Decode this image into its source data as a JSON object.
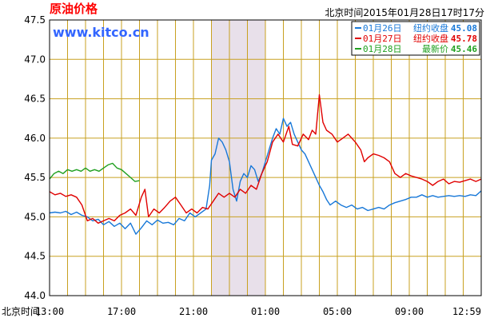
{
  "chart_data": {
    "type": "line",
    "title": "原油价格",
    "site": "www.kitco.cn",
    "timestamp": "北京时间2015年01月28日17时17分",
    "xlabel": "北京时间",
    "ylabel": "",
    "ylim": [
      44.0,
      47.5
    ],
    "yticks": [
      "44.0",
      "44.5",
      "45.0",
      "45.5",
      "46.0",
      "46.5",
      "47.0",
      "47.5"
    ],
    "xticks": [
      "13:00",
      "17:00",
      "21:00",
      "01:00",
      "05:00",
      "09:00",
      "12:59"
    ],
    "xrange": [
      0,
      24
    ],
    "shaded_region": [
      9.0,
      12.0
    ],
    "grid": true,
    "legend_placement": "top-right",
    "colors": {
      "grid": "#c8a020",
      "shade": "#e8e0ea",
      "frame": "#000000"
    },
    "series": [
      {
        "name": "01月26日",
        "label": "纽约收盘",
        "value": "45.08",
        "color": "#1878d8",
        "points": [
          [
            0.0,
            45.05
          ],
          [
            0.3,
            45.06
          ],
          [
            0.6,
            45.05
          ],
          [
            0.9,
            45.07
          ],
          [
            1.2,
            45.03
          ],
          [
            1.5,
            45.06
          ],
          [
            1.8,
            45.02
          ],
          [
            2.1,
            45.0
          ],
          [
            2.4,
            44.95
          ],
          [
            2.7,
            44.97
          ],
          [
            3.0,
            44.9
          ],
          [
            3.3,
            44.94
          ],
          [
            3.6,
            44.88
          ],
          [
            3.9,
            44.92
          ],
          [
            4.2,
            44.85
          ],
          [
            4.5,
            44.92
          ],
          [
            4.8,
            44.78
          ],
          [
            5.1,
            44.86
          ],
          [
            5.4,
            44.95
          ],
          [
            5.7,
            44.9
          ],
          [
            6.0,
            44.96
          ],
          [
            6.3,
            44.92
          ],
          [
            6.6,
            44.93
          ],
          [
            6.9,
            44.9
          ],
          [
            7.2,
            44.98
          ],
          [
            7.5,
            44.95
          ],
          [
            7.8,
            45.05
          ],
          [
            8.1,
            45.0
          ],
          [
            8.4,
            45.05
          ],
          [
            8.7,
            45.1
          ],
          [
            8.9,
            45.4
          ],
          [
            9.0,
            45.72
          ],
          [
            9.2,
            45.8
          ],
          [
            9.4,
            46.0
          ],
          [
            9.6,
            45.95
          ],
          [
            9.8,
            45.85
          ],
          [
            10.0,
            45.7
          ],
          [
            10.2,
            45.35
          ],
          [
            10.4,
            45.2
          ],
          [
            10.6,
            45.45
          ],
          [
            10.8,
            45.55
          ],
          [
            11.0,
            45.5
          ],
          [
            11.2,
            45.65
          ],
          [
            11.4,
            45.6
          ],
          [
            11.6,
            45.45
          ],
          [
            11.8,
            45.55
          ],
          [
            12.0,
            45.7
          ],
          [
            12.2,
            45.85
          ],
          [
            12.4,
            46.0
          ],
          [
            12.6,
            46.12
          ],
          [
            12.8,
            46.05
          ],
          [
            13.0,
            46.25
          ],
          [
            13.2,
            46.15
          ],
          [
            13.4,
            46.2
          ],
          [
            13.6,
            46.05
          ],
          [
            13.8,
            45.95
          ],
          [
            14.0,
            45.85
          ],
          [
            14.2,
            45.8
          ],
          [
            14.5,
            45.65
          ],
          [
            14.8,
            45.5
          ],
          [
            15.0,
            45.4
          ],
          [
            15.2,
            45.32
          ],
          [
            15.4,
            45.22
          ],
          [
            15.6,
            45.15
          ],
          [
            15.9,
            45.2
          ],
          [
            16.2,
            45.15
          ],
          [
            16.5,
            45.12
          ],
          [
            16.8,
            45.15
          ],
          [
            17.1,
            45.1
          ],
          [
            17.4,
            45.12
          ],
          [
            17.7,
            45.08
          ],
          [
            18.0,
            45.1
          ],
          [
            18.3,
            45.12
          ],
          [
            18.6,
            45.1
          ],
          [
            18.9,
            45.15
          ],
          [
            19.2,
            45.18
          ],
          [
            19.5,
            45.2
          ],
          [
            19.8,
            45.22
          ],
          [
            20.1,
            45.25
          ],
          [
            20.4,
            45.25
          ],
          [
            20.7,
            45.28
          ],
          [
            21.0,
            45.25
          ],
          [
            21.3,
            45.27
          ],
          [
            21.6,
            45.25
          ],
          [
            21.9,
            45.26
          ],
          [
            22.2,
            45.27
          ],
          [
            22.5,
            45.26
          ],
          [
            22.8,
            45.27
          ],
          [
            23.1,
            45.26
          ],
          [
            23.4,
            45.28
          ],
          [
            23.7,
            45.27
          ],
          [
            24.0,
            45.33
          ]
        ]
      },
      {
        "name": "01月27日",
        "label": "纽约收盘",
        "value": "45.78",
        "color": "#e00000",
        "points": [
          [
            0.0,
            45.32
          ],
          [
            0.3,
            45.28
          ],
          [
            0.6,
            45.3
          ],
          [
            0.9,
            45.26
          ],
          [
            1.2,
            45.28
          ],
          [
            1.5,
            45.25
          ],
          [
            1.8,
            45.15
          ],
          [
            2.1,
            44.95
          ],
          [
            2.4,
            44.98
          ],
          [
            2.7,
            44.92
          ],
          [
            3.0,
            44.95
          ],
          [
            3.3,
            44.98
          ],
          [
            3.6,
            44.95
          ],
          [
            3.9,
            45.02
          ],
          [
            4.2,
            45.05
          ],
          [
            4.5,
            45.1
          ],
          [
            4.8,
            45.02
          ],
          [
            5.1,
            45.25
          ],
          [
            5.3,
            45.35
          ],
          [
            5.5,
            45.0
          ],
          [
            5.8,
            45.1
          ],
          [
            6.1,
            45.05
          ],
          [
            6.4,
            45.12
          ],
          [
            6.7,
            45.2
          ],
          [
            7.0,
            45.25
          ],
          [
            7.3,
            45.15
          ],
          [
            7.6,
            45.05
          ],
          [
            7.9,
            45.1
          ],
          [
            8.2,
            45.05
          ],
          [
            8.5,
            45.12
          ],
          [
            8.8,
            45.1
          ],
          [
            9.1,
            45.2
          ],
          [
            9.4,
            45.3
          ],
          [
            9.7,
            45.25
          ],
          [
            10.0,
            45.3
          ],
          [
            10.3,
            45.25
          ],
          [
            10.6,
            45.35
          ],
          [
            10.9,
            45.3
          ],
          [
            11.2,
            45.4
          ],
          [
            11.5,
            45.35
          ],
          [
            11.8,
            45.55
          ],
          [
            12.1,
            45.7
          ],
          [
            12.4,
            45.95
          ],
          [
            12.7,
            46.05
          ],
          [
            13.0,
            45.95
          ],
          [
            13.3,
            46.15
          ],
          [
            13.5,
            45.92
          ],
          [
            13.8,
            45.9
          ],
          [
            14.1,
            46.05
          ],
          [
            14.4,
            45.98
          ],
          [
            14.6,
            46.1
          ],
          [
            14.8,
            46.05
          ],
          [
            15.0,
            46.55
          ],
          [
            15.2,
            46.2
          ],
          [
            15.4,
            46.1
          ],
          [
            15.7,
            46.05
          ],
          [
            16.0,
            45.95
          ],
          [
            16.3,
            46.0
          ],
          [
            16.6,
            46.05
          ],
          [
            17.0,
            45.95
          ],
          [
            17.3,
            45.85
          ],
          [
            17.5,
            45.7
          ],
          [
            17.7,
            45.75
          ],
          [
            18.0,
            45.8
          ],
          [
            18.3,
            45.78
          ],
          [
            18.6,
            45.75
          ],
          [
            18.9,
            45.7
          ],
          [
            19.2,
            45.55
          ],
          [
            19.5,
            45.5
          ],
          [
            19.8,
            45.55
          ],
          [
            20.1,
            45.52
          ],
          [
            20.4,
            45.5
          ],
          [
            20.7,
            45.48
          ],
          [
            21.0,
            45.45
          ],
          [
            21.3,
            45.4
          ],
          [
            21.6,
            45.45
          ],
          [
            21.9,
            45.48
          ],
          [
            22.2,
            45.42
          ],
          [
            22.5,
            45.45
          ],
          [
            22.8,
            45.44
          ],
          [
            23.1,
            45.46
          ],
          [
            23.4,
            45.48
          ],
          [
            23.7,
            45.45
          ],
          [
            24.0,
            45.48
          ]
        ]
      },
      {
        "name": "01月28日",
        "label": "最新价",
        "value": "45.46",
        "color": "#20a020",
        "points": [
          [
            0.0,
            45.48
          ],
          [
            0.25,
            45.55
          ],
          [
            0.5,
            45.58
          ],
          [
            0.75,
            45.55
          ],
          [
            1.0,
            45.6
          ],
          [
            1.25,
            45.58
          ],
          [
            1.5,
            45.6
          ],
          [
            1.75,
            45.58
          ],
          [
            2.0,
            45.62
          ],
          [
            2.25,
            45.58
          ],
          [
            2.5,
            45.6
          ],
          [
            2.75,
            45.58
          ],
          [
            3.0,
            45.62
          ],
          [
            3.25,
            45.66
          ],
          [
            3.5,
            45.68
          ],
          [
            3.75,
            45.62
          ],
          [
            4.0,
            45.6
          ],
          [
            4.25,
            45.55
          ],
          [
            4.5,
            45.5
          ],
          [
            4.75,
            45.45
          ],
          [
            5.0,
            45.46
          ]
        ]
      }
    ]
  }
}
